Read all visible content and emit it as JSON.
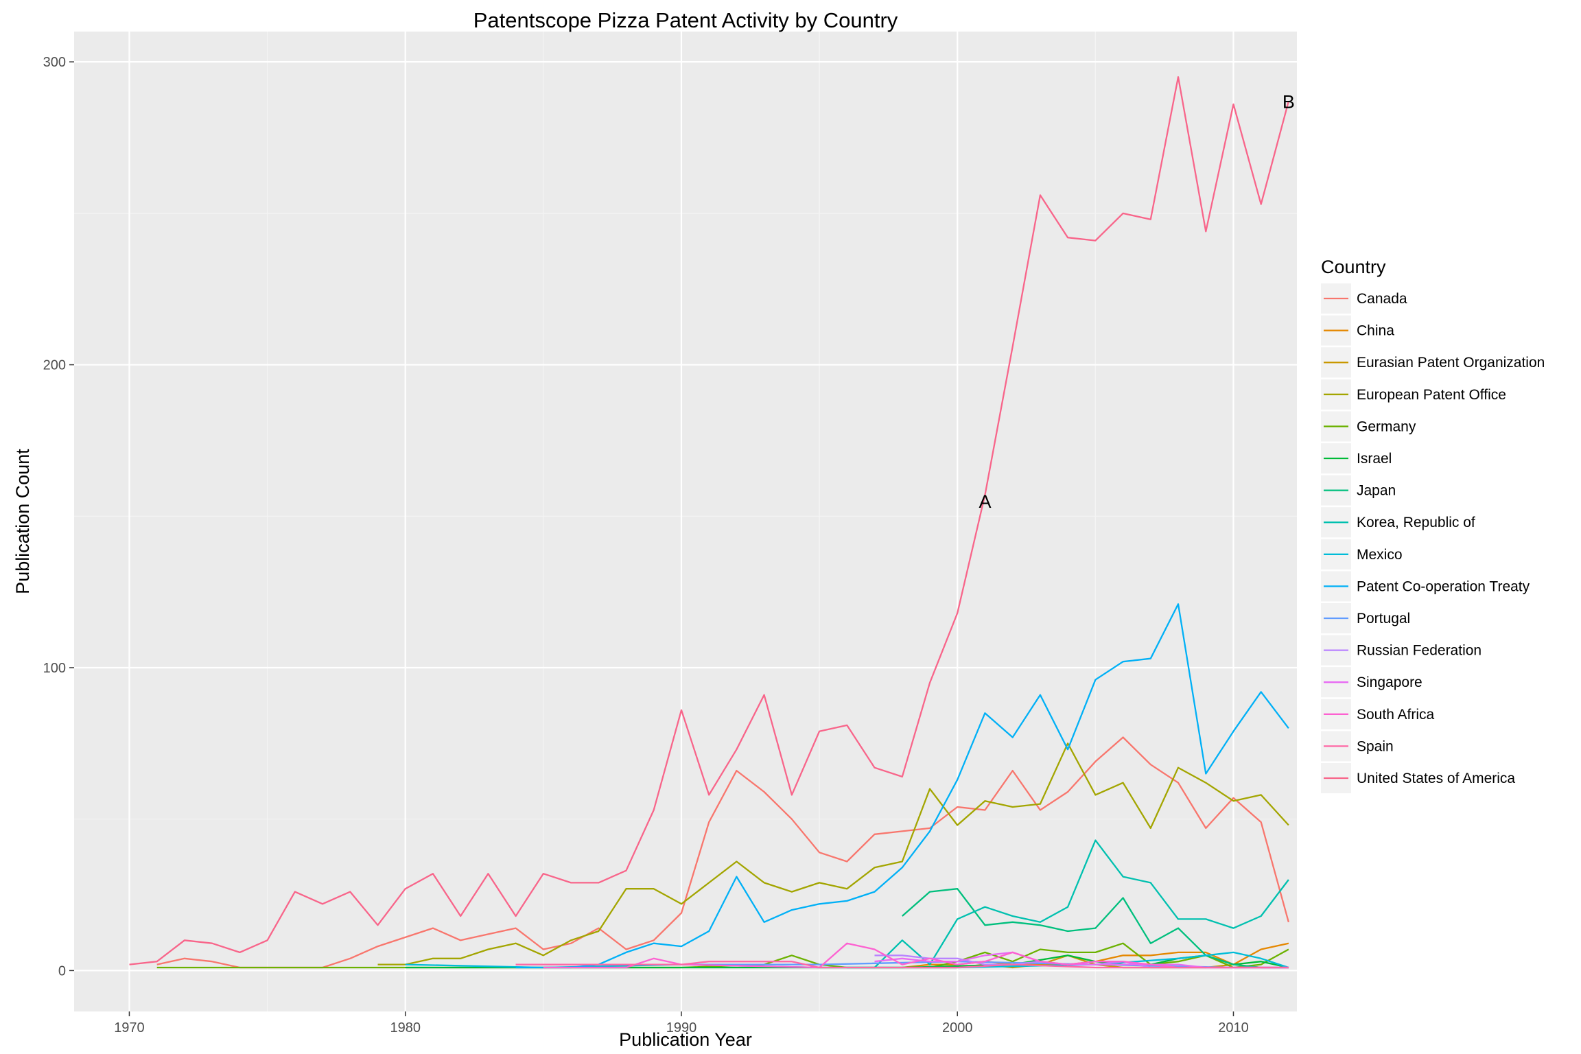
{
  "chart_data": {
    "type": "line",
    "title": "Patentscope Pizza Patent Activity by Country",
    "xlabel": "Publication Year",
    "ylabel": "Publication Count",
    "xlim": [
      1968,
      2012.3
    ],
    "ylim": [
      -13.5,
      310
    ],
    "xticks": [
      1970,
      1980,
      1990,
      2000,
      2010
    ],
    "yticks": [
      0,
      100,
      200,
      300
    ],
    "grid": true,
    "legend_title": "Country",
    "legend_position": "right",
    "annotations": [
      {
        "text": "A",
        "x": 2001,
        "y": 155
      },
      {
        "text": "B",
        "x": 2012,
        "y": 287
      }
    ],
    "series": [
      {
        "name": "Canada",
        "color": "#F8766D",
        "x": [
          1971,
          1972,
          1973,
          1974,
          1975,
          1976,
          1977,
          1978,
          1979,
          1980,
          1981,
          1982,
          1983,
          1984,
          1985,
          1986,
          1987,
          1988,
          1989,
          1990,
          1991,
          1992,
          1993,
          1994,
          1995,
          1996,
          1997,
          1998,
          1999,
          2000,
          2001,
          2002,
          2003,
          2004,
          2005,
          2006,
          2007,
          2008,
          2009,
          2010,
          2011,
          2012
        ],
        "y": [
          2,
          4,
          3,
          1,
          1,
          1,
          1,
          4,
          8,
          11,
          14,
          10,
          12,
          14,
          7,
          9,
          14,
          7,
          10,
          19,
          49,
          66,
          59,
          50,
          39,
          36,
          45,
          46,
          47,
          54,
          53,
          66,
          53,
          59,
          69,
          77,
          68,
          62,
          47,
          57,
          49,
          16
        ]
      },
      {
        "name": "China",
        "color": "#E58700",
        "x": [
          1998,
          1999,
          2000,
          2001,
          2002,
          2003,
          2004,
          2005,
          2006,
          2007,
          2008,
          2009,
          2010,
          2011,
          2012
        ],
        "y": [
          1,
          2,
          2,
          3,
          2,
          2,
          2,
          3,
          5,
          5,
          6,
          6,
          2,
          7,
          9
        ]
      },
      {
        "name": "Eurasian Patent Organization",
        "color": "#C99800",
        "x": [
          1999,
          2000,
          2001,
          2002,
          2003,
          2004,
          2005,
          2006,
          2007,
          2008,
          2009,
          2010,
          2011,
          2012
        ],
        "y": [
          1,
          1,
          2,
          1,
          2,
          5,
          2,
          1,
          1,
          1,
          1,
          2,
          1,
          1
        ]
      },
      {
        "name": "European Patent Office",
        "color": "#A3A500",
        "x": [
          1979,
          1980,
          1981,
          1982,
          1983,
          1984,
          1985,
          1986,
          1987,
          1988,
          1989,
          1990,
          1991,
          1992,
          1993,
          1994,
          1995,
          1996,
          1997,
          1998,
          1999,
          2000,
          2001,
          2002,
          2003,
          2004,
          2005,
          2006,
          2007,
          2008,
          2009,
          2010,
          2011,
          2012
        ],
        "y": [
          2,
          2,
          4,
          4,
          7,
          9,
          5,
          10,
          13,
          27,
          27,
          22,
          29,
          36,
          29,
          26,
          29,
          27,
          34,
          36,
          60,
          48,
          56,
          54,
          55,
          75,
          58,
          62,
          47,
          67,
          62,
          56,
          58,
          48
        ]
      },
      {
        "name": "Germany",
        "color": "#6BB100",
        "x": [
          1971,
          1975,
          1980,
          1985,
          1990,
          1993,
          1994,
          1995,
          1996,
          1997,
          1998,
          1999,
          2000,
          2001,
          2002,
          2003,
          2004,
          2005,
          2006,
          2007,
          2008,
          2009,
          2010,
          2011,
          2012
        ],
        "y": [
          1,
          1,
          1,
          1,
          1,
          2,
          5,
          2,
          1,
          1,
          1,
          1,
          3,
          6,
          3,
          7,
          6,
          6,
          9,
          2,
          3,
          5,
          1,
          2,
          7
        ]
      },
      {
        "name": "Israel",
        "color": "#00BA38",
        "x": [
          1980,
          1990,
          1998,
          2002,
          2004,
          2005,
          2006,
          2007,
          2008,
          2009,
          2010,
          2011,
          2012
        ],
        "y": [
          1,
          1,
          1,
          2,
          5,
          3,
          2,
          2,
          4,
          5,
          2,
          3,
          1
        ]
      },
      {
        "name": "Japan",
        "color": "#00BF7D",
        "x": [
          1998,
          1999,
          2000,
          2001,
          2002,
          2003,
          2004,
          2005,
          2006,
          2007,
          2008,
          2009,
          2010,
          2011,
          2012
        ],
        "y": [
          18,
          26,
          27,
          15,
          16,
          15,
          13,
          14,
          24,
          9,
          14,
          5,
          2,
          1,
          1
        ]
      },
      {
        "name": "Korea, Republic of",
        "color": "#00C0AF",
        "x": [
          1996,
          1997,
          1998,
          1999,
          2000,
          2001,
          2002,
          2003,
          2004,
          2005,
          2006,
          2007,
          2008,
          2009,
          2010,
          2011,
          2012
        ],
        "y": [
          1,
          1,
          10,
          2,
          17,
          21,
          18,
          16,
          21,
          43,
          31,
          29,
          17,
          17,
          14,
          18,
          30
        ]
      },
      {
        "name": "Mexico",
        "color": "#00BCD8",
        "x": [
          1980,
          1985,
          1990,
          1995,
          2000,
          2005,
          2008,
          2010,
          2011,
          2012
        ],
        "y": [
          2,
          1,
          2,
          1,
          1,
          2,
          4,
          6,
          4,
          1
        ]
      },
      {
        "name": "Patent Co-operation Treaty",
        "color": "#00B0F6",
        "x": [
          1984,
          1985,
          1986,
          1987,
          1988,
          1989,
          1990,
          1991,
          1992,
          1993,
          1994,
          1995,
          1996,
          1997,
          1998,
          1999,
          2000,
          2001,
          2002,
          2003,
          2004,
          2005,
          2006,
          2007,
          2008,
          2009,
          2010,
          2011,
          2012
        ],
        "y": [
          1,
          1,
          1,
          2,
          6,
          9,
          8,
          13,
          31,
          16,
          20,
          22,
          23,
          26,
          34,
          46,
          63,
          85,
          77,
          91,
          73,
          96,
          102,
          103,
          121,
          65,
          79,
          92,
          80
        ]
      },
      {
        "name": "Portugal",
        "color": "#619CFF",
        "x": [
          1984,
          1990,
          1995,
          2000,
          2005,
          2010,
          2012
        ],
        "y": [
          2,
          2,
          2,
          3,
          2,
          1,
          1
        ]
      },
      {
        "name": "Russian Federation",
        "color": "#B983FF",
        "x": [
          1997,
          1998,
          1999,
          2000,
          2001,
          2002,
          2003,
          2004,
          2005,
          2006,
          2007,
          2008,
          2009,
          2010,
          2011,
          2012
        ],
        "y": [
          5,
          5,
          4,
          4,
          2,
          2,
          3,
          2,
          2,
          3,
          1,
          1,
          1,
          1,
          1,
          1
        ]
      },
      {
        "name": "Singapore",
        "color": "#E76BF3",
        "x": [
          1997,
          1998,
          1999,
          2000,
          2001,
          2002,
          2003,
          2004,
          2005,
          2006,
          2007,
          2008,
          2009,
          2010,
          2011,
          2012
        ],
        "y": [
          3,
          4,
          3,
          3,
          5,
          6,
          3,
          2,
          2,
          2,
          2,
          2,
          1,
          1,
          1,
          1
        ]
      },
      {
        "name": "South Africa",
        "color": "#FD61D1",
        "x": [
          1985,
          1988,
          1989,
          1990,
          1995,
          1996,
          1997,
          1998,
          1999,
          2000,
          2001,
          2002,
          2003,
          2004,
          2005,
          2006,
          2007,
          2008,
          2012
        ],
        "y": [
          1,
          1,
          4,
          2,
          1,
          9,
          7,
          2,
          4,
          2,
          3,
          6,
          3,
          2,
          3,
          3,
          2,
          1,
          1
        ]
      },
      {
        "name": "Spain",
        "color": "#FF67A4",
        "x": [
          1984,
          1985,
          1990,
          1991,
          1992,
          1993,
          1994,
          1995,
          2000,
          2002,
          2005,
          2008,
          2012
        ],
        "y": [
          2,
          2,
          2,
          3,
          3,
          3,
          3,
          1,
          1,
          2,
          1,
          1,
          1
        ]
      },
      {
        "name": "United States of America",
        "color": "#F8658A",
        "x": [
          1970,
          1971,
          1972,
          1973,
          1974,
          1975,
          1976,
          1977,
          1978,
          1979,
          1980,
          1981,
          1982,
          1983,
          1984,
          1985,
          1986,
          1987,
          1988,
          1989,
          1990,
          1991,
          1992,
          1993,
          1994,
          1995,
          1996,
          1997,
          1998,
          1999,
          2000,
          2001,
          2002,
          2003,
          2004,
          2005,
          2006,
          2007,
          2008,
          2009,
          2010,
          2011,
          2012
        ],
        "y": [
          2,
          3,
          10,
          9,
          6,
          10,
          26,
          22,
          26,
          15,
          27,
          32,
          18,
          32,
          18,
          32,
          29,
          29,
          33,
          53,
          86,
          58,
          73,
          91,
          58,
          79,
          81,
          67,
          64,
          95,
          118,
          157,
          206,
          256,
          242,
          241,
          250,
          248,
          295,
          244,
          286,
          253,
          287
        ]
      }
    ]
  }
}
